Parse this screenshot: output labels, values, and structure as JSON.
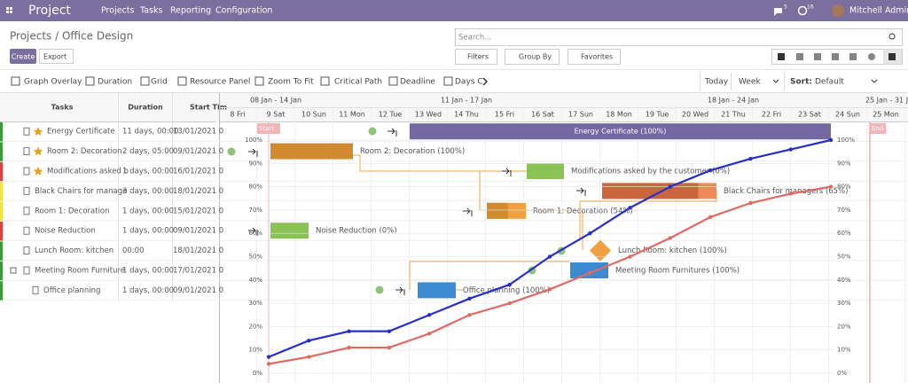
{
  "navbar": {
    "app": "Project",
    "menu": [
      "Projects",
      "Tasks",
      "Reporting",
      "Configuration"
    ],
    "messages_badge": 5,
    "activity_badge": 16,
    "user": "Mitchell Admin"
  },
  "breadcrumb": "Projects / Office Design",
  "search_placeholder": "Search...",
  "buttons": {
    "create": "Create",
    "export": "Export",
    "filters": "Filters",
    "group_by": "Group By",
    "favorites": "Favorites"
  },
  "toolbar": {
    "items": [
      "Graph Overlay",
      "Duration",
      "Grid",
      "Resource Panel",
      "Zoom To Fit",
      "Critical Path",
      "Deadline",
      "Days C"
    ],
    "today": "Today",
    "scale": "Week",
    "sort_label": "Sort:",
    "sort_value": "Default"
  },
  "grid": {
    "columns": [
      "Tasks",
      "Duration",
      "Start Tim"
    ],
    "rows": [
      {
        "name": "Energy Certificate",
        "duration": "11 days, 00:00",
        "start": "13/01/2021 0"
      },
      {
        "name": "Room 2: Decoration",
        "duration": "2 days, 05:00",
        "start": "09/01/2021 0"
      },
      {
        "name": "Modifications asked b",
        "duration": "1 days, 00:00",
        "start": "16/01/2021 0"
      },
      {
        "name": "Black Chairs for manage",
        "duration": "3 days, 00:00",
        "start": "18/01/2021 0"
      },
      {
        "name": "Room 1: Decoration",
        "duration": "1 days, 00:00",
        "start": "15/01/2021 0"
      },
      {
        "name": "Noise Reduction",
        "duration": "1 days, 00:00",
        "start": "09/01/2021 0"
      },
      {
        "name": "Lunch Room: kitchen",
        "duration": "00:00",
        "start": "18/01/2021 0"
      },
      {
        "name": "Meeting Room Furniture",
        "duration": "1 days, 00:00",
        "start": "17/01/2021 0"
      },
      {
        "name": "Office planning",
        "duration": "1 days, 00:00",
        "start": "09/01/2021 0"
      }
    ]
  },
  "timeline": {
    "weeks": [
      "08 Jan - 14 Jan",
      "11 Jan - 17 Jan",
      "18 Jan - 24 Jan",
      "25 Jan - 31 J"
    ],
    "days": [
      "8 Fri",
      "9 Sat",
      "10 Sun",
      "11 Mon",
      "12 Tue",
      "13 Wed",
      "14 Thu",
      "15 Fri",
      "16 Sat",
      "17 Sun",
      "18 Mon",
      "19 Tue",
      "20 Wed",
      "21 Thu",
      "22 Fri",
      "23 Sat",
      "24 Sun",
      "25 Mon"
    ],
    "start_marker": "Start",
    "end_marker": "End"
  },
  "tasks": [
    "Energy Certificate (100%)",
    "Room 2: Decoration (100%)",
    "Modifications asked by the customer (0%)",
    "Black Chairs for managers (65%)",
    "Room 1: Decoration (54%)",
    "Noise Reduction (0%)",
    "Lunch Room: kitchen (100%)",
    "Meeting Room Furnitures (100%)",
    "Office planning (100%)"
  ],
  "chart_data": {
    "type": "line",
    "ylim": [
      0,
      100
    ],
    "yticks": [
      {
        "value": 0,
        "label": "0%"
      },
      {
        "value": 10,
        "label": "10%"
      },
      {
        "value": 20,
        "label": "20%"
      },
      {
        "value": 30,
        "label": "30%"
      },
      {
        "value": 40,
        "label": "40%"
      },
      {
        "value": 50,
        "label": "50%"
      },
      {
        "value": 60,
        "label": "60%"
      },
      {
        "value": 70,
        "label": "70%"
      },
      {
        "value": 80,
        "label": "80%"
      },
      {
        "value": 90,
        "label": "90%"
      },
      {
        "value": 100,
        "label": "100%"
      }
    ],
    "series": [
      {
        "color": "#2530c8",
        "values": [
          7,
          14,
          18,
          18,
          25,
          32,
          38,
          50,
          60,
          71,
          80,
          87,
          92,
          96,
          100
        ]
      },
      {
        "color": "#e06a62",
        "values": [
          4,
          7,
          11,
          11,
          17,
          25,
          30,
          36,
          43,
          50,
          58,
          67,
          73,
          77,
          80
        ]
      }
    ]
  }
}
